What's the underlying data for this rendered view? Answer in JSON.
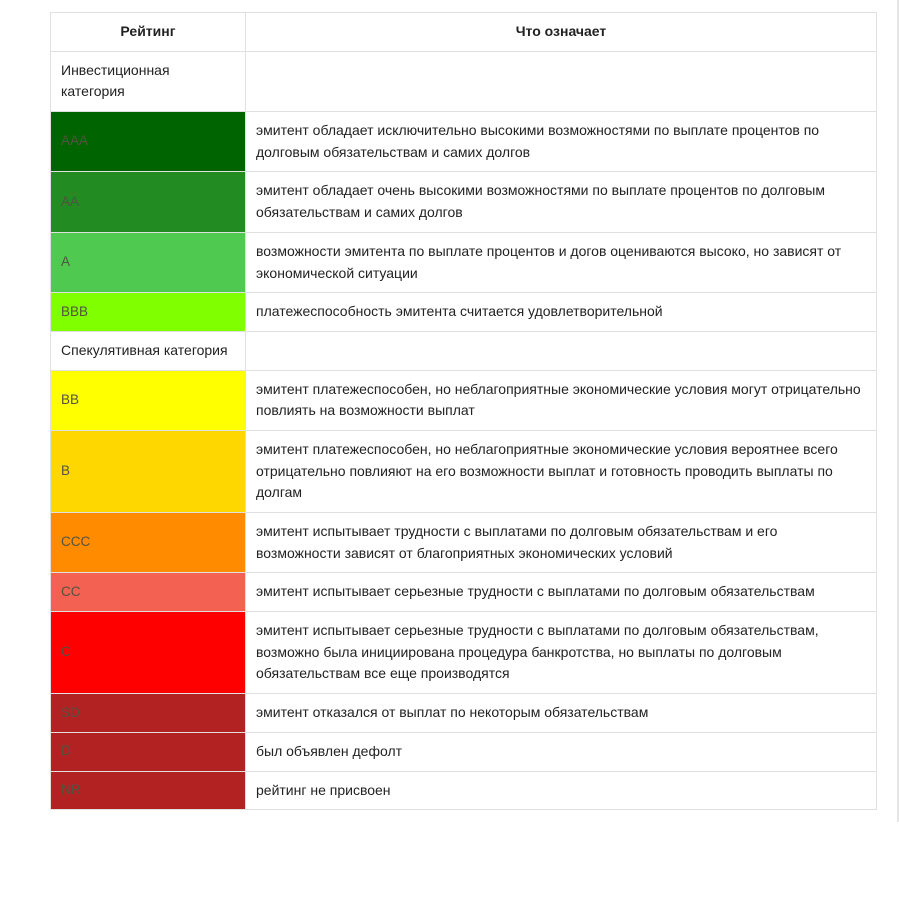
{
  "table": {
    "type": "table",
    "columns": [
      {
        "label": "Рейтинг",
        "width": 195
      },
      {
        "label": "Что означает"
      }
    ],
    "border_color": "#e0e0e0",
    "font_family": "Verdana, Tahoma, Arial, sans-serif",
    "font_size": 14,
    "rating_text_color": "#525343",
    "desc_text_color": "#222222",
    "rows": [
      {
        "kind": "category",
        "label": "Инвестиционная категория"
      },
      {
        "kind": "rating",
        "code": "AAA",
        "color": "#006400",
        "desc": "эмитент обладает исключительно высокими возможностями по выплате процентов по долговым обязательствам и самих долгов"
      },
      {
        "kind": "rating",
        "code": "AA",
        "color": "#228b22",
        "desc": "эмитент обладает очень высокими возможностями по выплате процентов по долговым обязательствам и самих долгов"
      },
      {
        "kind": "rating",
        "code": "A",
        "color": "#4fc94f",
        "desc": "возможности эмитента по выплате процентов и догов оцениваются высоко, но зависят от экономической ситуации"
      },
      {
        "kind": "rating",
        "code": "BBB",
        "color": "#7fff00",
        "desc": "платежеспособность эмитента считается удовлетворительной"
      },
      {
        "kind": "category",
        "label": "Спекулятивная категория"
      },
      {
        "kind": "rating",
        "code": "BB",
        "color": "#ffff00",
        "desc": "эмитент платежеспособен, но неблагоприятные экономические условия могут отрицательно повлиять на возможности выплат"
      },
      {
        "kind": "rating",
        "code": "B",
        "color": "#ffd700",
        "desc": "эмитент платежеспособен, но неблагоприятные экономические условия вероятнее всего отрицательно повлияют на его возможности выплат и готовность проводить выплаты по долгам"
      },
      {
        "kind": "rating",
        "code": "CCC",
        "color": "#ff8c00",
        "desc": "эмитент испытывает трудности с выплатами по долговым обязательствам и его возможности зависят от благоприятных экономических условий"
      },
      {
        "kind": "rating",
        "code": "CC",
        "color": "#f26152",
        "desc": "эмитент испытывает серьезные трудности с выплатами по долговым обязательствам"
      },
      {
        "kind": "rating",
        "code": "C",
        "color": "#ff0000",
        "desc": "эмитент испытывает серьезные трудности с выплатами по долговым обязательствам, возможно была инициирована процедура банкротства, но выплаты по долговым обязательствам все еще производятся"
      },
      {
        "kind": "rating",
        "code": "SD",
        "color": "#b22222",
        "desc": "эмитент отказался от выплат по некоторым обязательствам"
      },
      {
        "kind": "rating",
        "code": "D",
        "color": "#b22222",
        "desc": "был объявлен дефолт"
      },
      {
        "kind": "rating",
        "code": "NR",
        "color": "#b22222",
        "desc": "рейтинг не присвоен"
      }
    ]
  }
}
